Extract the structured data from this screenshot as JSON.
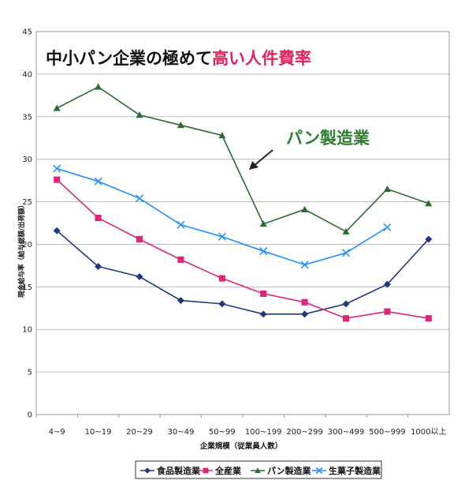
{
  "chart_data": {
    "type": "line",
    "title": "中小パン企業の極めて",
    "title_highlight": "高い人件費率",
    "ylabel": "現金給与率（給与総額/出荷額）",
    "xlabel": "企業規模（従業員人数）",
    "ylim": [
      0,
      45
    ],
    "yticks": [
      "0",
      "5",
      "10",
      "15",
      "20",
      "25",
      "30",
      "35",
      "40",
      "45"
    ],
    "grid": true,
    "legend_position": "bottom",
    "categories": [
      "4~9",
      "10~19",
      "20~29",
      "30~49",
      "50~99",
      "100~199",
      "200~299",
      "300~499",
      "500~999",
      "1000以上"
    ],
    "series": [
      {
        "name": "食品製造業",
        "color": "#1f3a7a",
        "marker": "diamond",
        "values": [
          21.6,
          17.4,
          16.2,
          13.4,
          13.0,
          11.8,
          11.8,
          13.0,
          15.3,
          20.6
        ]
      },
      {
        "name": "全産業",
        "color": "#e0247a",
        "marker": "square",
        "values": [
          27.6,
          23.1,
          20.6,
          18.2,
          16.0,
          14.2,
          13.2,
          11.3,
          12.1,
          11.3
        ]
      },
      {
        "name": "パン製造業",
        "color": "#2d6a35",
        "marker": "triangle",
        "values": [
          36.0,
          38.5,
          35.2,
          34.0,
          32.8,
          22.4,
          24.1,
          21.5,
          26.5,
          24.8
        ]
      },
      {
        "name": "生菓子製造業",
        "color": "#1e90ff",
        "marker": "x",
        "values": [
          28.9,
          27.4,
          25.4,
          22.3,
          20.9,
          19.2,
          17.6,
          19.0,
          22.0,
          null
        ]
      }
    ],
    "annotation": {
      "text": "パン製造業"
    }
  }
}
